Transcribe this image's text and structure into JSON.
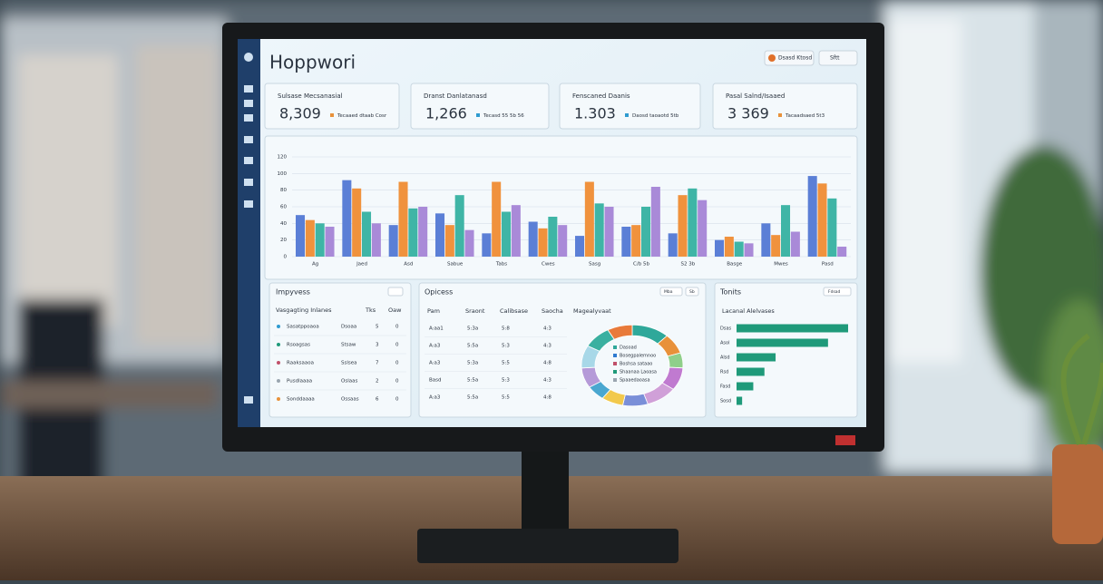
{
  "header": {
    "title": "Hoppwori",
    "buttons": [
      "Dsasd Ktosd",
      "Sftt"
    ]
  },
  "kpis": [
    {
      "label": "Sulsase Mecsanasial",
      "value": "8,309",
      "note": "Tecaaed dtaab Cosr",
      "color": "#e8913a"
    },
    {
      "label": "Dranst Danlatanasd",
      "value": "1,266",
      "note": "Tecasd 55 5b 56",
      "color": "#2f9bd0"
    },
    {
      "label": "Fenscaned Daanis",
      "value": "1.303",
      "note": "Daosd taoaotd 5tb",
      "color": "#2f9bd0"
    },
    {
      "label": "Pasal Salnd/Isaaed",
      "value": "3 369",
      "note": "Tacaadsaed 5t3",
      "color": "#e8913a"
    }
  ],
  "chart_data": {
    "type": "bar",
    "categories": [
      "Ag",
      "Jaed",
      "Asd",
      "Sabue",
      "Tabs",
      "Cwes",
      "Sasg",
      "C/b 5b",
      "S2 3b",
      "Basge",
      "Mwes",
      "Pasd"
    ],
    "series": [
      {
        "color": "#5b7fd6",
        "values": [
          50,
          92,
          38,
          52,
          28,
          42,
          25,
          36,
          28,
          20,
          40,
          97
        ]
      },
      {
        "color": "#f0923d",
        "values": [
          44,
          82,
          90,
          38,
          90,
          34,
          90,
          38,
          74,
          24,
          26,
          88
        ]
      },
      {
        "color": "#3fb5a6",
        "values": [
          40,
          54,
          58,
          74,
          54,
          48,
          64,
          60,
          82,
          18,
          62,
          70
        ]
      },
      {
        "color": "#a98ad8",
        "values": [
          36,
          40,
          60,
          32,
          62,
          38,
          60,
          84,
          68,
          16,
          30,
          12
        ]
      }
    ],
    "ylim": [
      0,
      120
    ],
    "yticks": [
      0,
      20,
      40,
      60,
      80,
      100,
      120
    ],
    "grid": true
  },
  "employees": {
    "title": "Impyvess",
    "headers": [
      "Vasgagting Inlanes",
      "Tks",
      "Oaw"
    ],
    "rows": [
      {
        "color": "#2f9bd0",
        "cells": [
          "Sasatppoaoa",
          "Dsoaa",
          5,
          0
        ]
      },
      {
        "color": "#1f9a7a",
        "cells": [
          "Rsoagsas",
          "Stsaw",
          3,
          0
        ]
      },
      {
        "color": "#c0506a",
        "cells": [
          "Raaksaaoa",
          "Sslsea",
          7,
          0
        ]
      },
      {
        "color": "#9aa5b0",
        "cells": [
          "Pusdlaaaa",
          "Oslaas",
          2,
          0
        ]
      },
      {
        "color": "#e8913a",
        "cells": [
          "Sonddaaaa",
          "Ossaas",
          6,
          0
        ]
      }
    ]
  },
  "options": {
    "title": "Opicess",
    "buttons": [
      "Mba",
      "Sb"
    ],
    "headers": [
      "Pam",
      "Sraont",
      "Calibsase",
      "Saocha",
      "Magealyvaat"
    ],
    "rows": [
      [
        "A:aa1",
        "5:3a",
        "5:8",
        "4:3"
      ],
      [
        "A:a3",
        "5:5a",
        "5:3",
        "4:3"
      ],
      [
        "A:a3",
        "5:3a",
        "5:5",
        "4:8"
      ],
      [
        "Basd",
        "5:5a",
        "5:3",
        "4:3"
      ],
      [
        "A:a3",
        "5:5a",
        "5:5",
        "4:8"
      ]
    ],
    "donut": {
      "values": [
        12,
        8,
        6,
        9,
        10,
        8,
        7,
        6,
        8,
        9,
        9,
        8
      ],
      "colors": [
        "#2fa89a",
        "#e8913a",
        "#8fcf8a",
        "#c07ad0",
        "#d0a0d8",
        "#7a8fd8",
        "#f2c94c",
        "#4aa7d0",
        "#b59ad8",
        "#a8d8e8",
        "#3ab0a0",
        "#e87a3a"
      ],
      "legend": [
        {
          "label": "Dasoad",
          "color": "#2fa89a"
        },
        {
          "label": "Bosegpalemnoo",
          "color": "#2f7ad0"
        },
        {
          "label": "Boshsa sataao",
          "color": "#c0506a"
        },
        {
          "label": "Shaanaa Laoasa",
          "color": "#1f9a7a"
        },
        {
          "label": "Spaaedaoasa",
          "color": "#9aa5b0"
        }
      ]
    }
  },
  "trends": {
    "title": "Tonits",
    "button": "Fdsad",
    "subtitle": "Lacanal Alelvases",
    "categories": [
      "Dsas",
      "Asol",
      "Alsd",
      "Rsd",
      "Fasd",
      "Sosd"
    ],
    "values": [
      100,
      82,
      35,
      25,
      15,
      5
    ],
    "color": "#1f9a7a"
  }
}
